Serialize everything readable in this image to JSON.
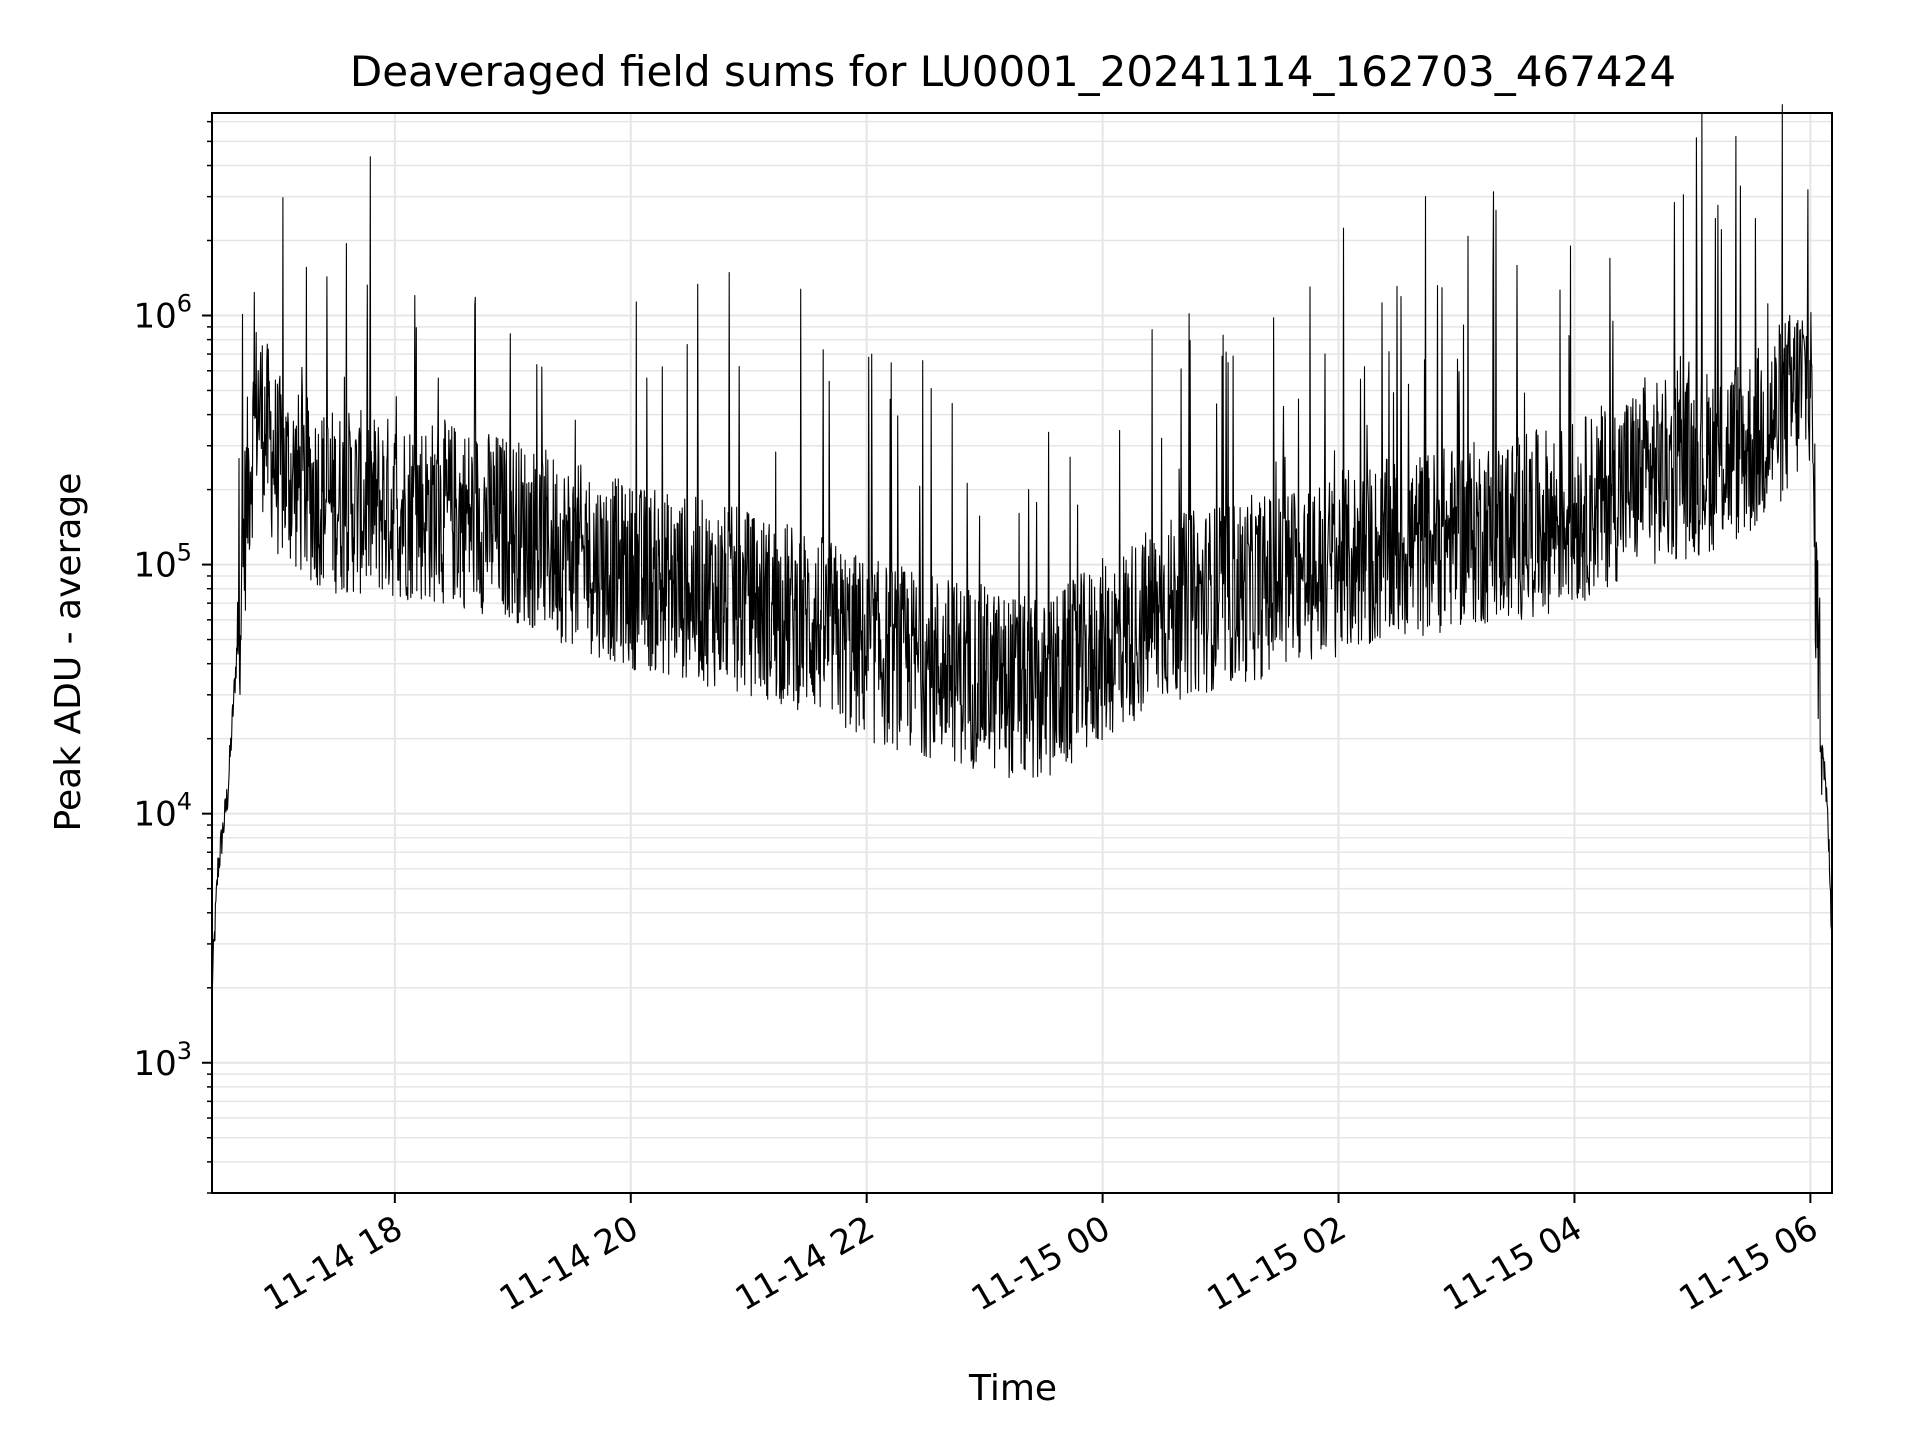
{
  "chart_data": {
    "type": "line",
    "title": "Deaveraged field sums for LU0001_20241114_162703_467424",
    "xlabel": "Time",
    "ylabel": "Peak ADU - average",
    "yscale": "log",
    "ylim": [
      300,
      6500000
    ],
    "xlim": [
      "2024-11-14 16:27",
      "2024-11-15 06:11"
    ],
    "grid": true,
    "line_color": "#000000",
    "grid_color": "#e5e5e5",
    "x_ticks": [
      {
        "label": "11-14 18",
        "time": "2024-11-14 18:00"
      },
      {
        "label": "11-14 20",
        "time": "2024-11-14 20:00"
      },
      {
        "label": "11-14 22",
        "time": "2024-11-14 22:00"
      },
      {
        "label": "11-15 00",
        "time": "2024-11-15 00:00"
      },
      {
        "label": "11-15 02",
        "time": "2024-11-15 02:00"
      },
      {
        "label": "11-15 04",
        "time": "2024-11-15 04:00"
      },
      {
        "label": "11-15 06",
        "time": "2024-11-15 06:00"
      }
    ],
    "y_ticks": [
      {
        "base": "10",
        "exp": "3",
        "value": 1000
      },
      {
        "base": "10",
        "exp": "4",
        "value": 10000
      },
      {
        "base": "10",
        "exp": "5",
        "value": 100000
      },
      {
        "base": "10",
        "exp": "6",
        "value": 1000000
      }
    ],
    "series": [
      {
        "x": [
          "2024-11-14 16:27",
          "2024-11-14 16:30",
          "2024-11-14 16:35",
          "2024-11-14 16:40",
          "2024-11-14 16:45",
          "2024-11-14 16:50",
          "2024-11-14 17:00",
          "2024-11-14 17:15",
          "2024-11-14 17:30",
          "2024-11-14 18:00",
          "2024-11-14 18:30",
          "2024-11-14 19:00",
          "2024-11-14 19:30",
          "2024-11-14 20:00",
          "2024-11-14 20:30",
          "2024-11-14 21:00",
          "2024-11-14 21:30",
          "2024-11-14 22:00",
          "2024-11-14 22:30",
          "2024-11-14 23:00",
          "2024-11-14 23:30",
          "2024-11-15 00:00",
          "2024-11-15 00:30",
          "2024-11-15 01:00",
          "2024-11-15 01:30",
          "2024-11-15 02:00",
          "2024-11-15 02:30",
          "2024-11-15 03:00",
          "2024-11-15 03:30",
          "2024-11-15 04:00",
          "2024-11-15 04:30",
          "2024-11-15 05:00",
          "2024-11-15 05:30",
          "2024-11-15 05:50",
          "2024-11-15 06:00",
          "2024-11-15 06:03",
          "2024-11-15 06:06",
          "2024-11-15 06:09",
          "2024-11-15 06:11"
        ],
        "y": [
          2000,
          6000,
          12000,
          50000,
          200000,
          450000,
          250000,
          200000,
          180000,
          170000,
          160000,
          140000,
          110000,
          90000,
          80000,
          70000,
          60000,
          45000,
          40000,
          35000,
          30000,
          45000,
          65000,
          75000,
          85000,
          100000,
          115000,
          130000,
          140000,
          160000,
          220000,
          250000,
          300000,
          450000,
          600000,
          80000,
          20000,
          9000,
          3000
        ]
      }
    ]
  }
}
